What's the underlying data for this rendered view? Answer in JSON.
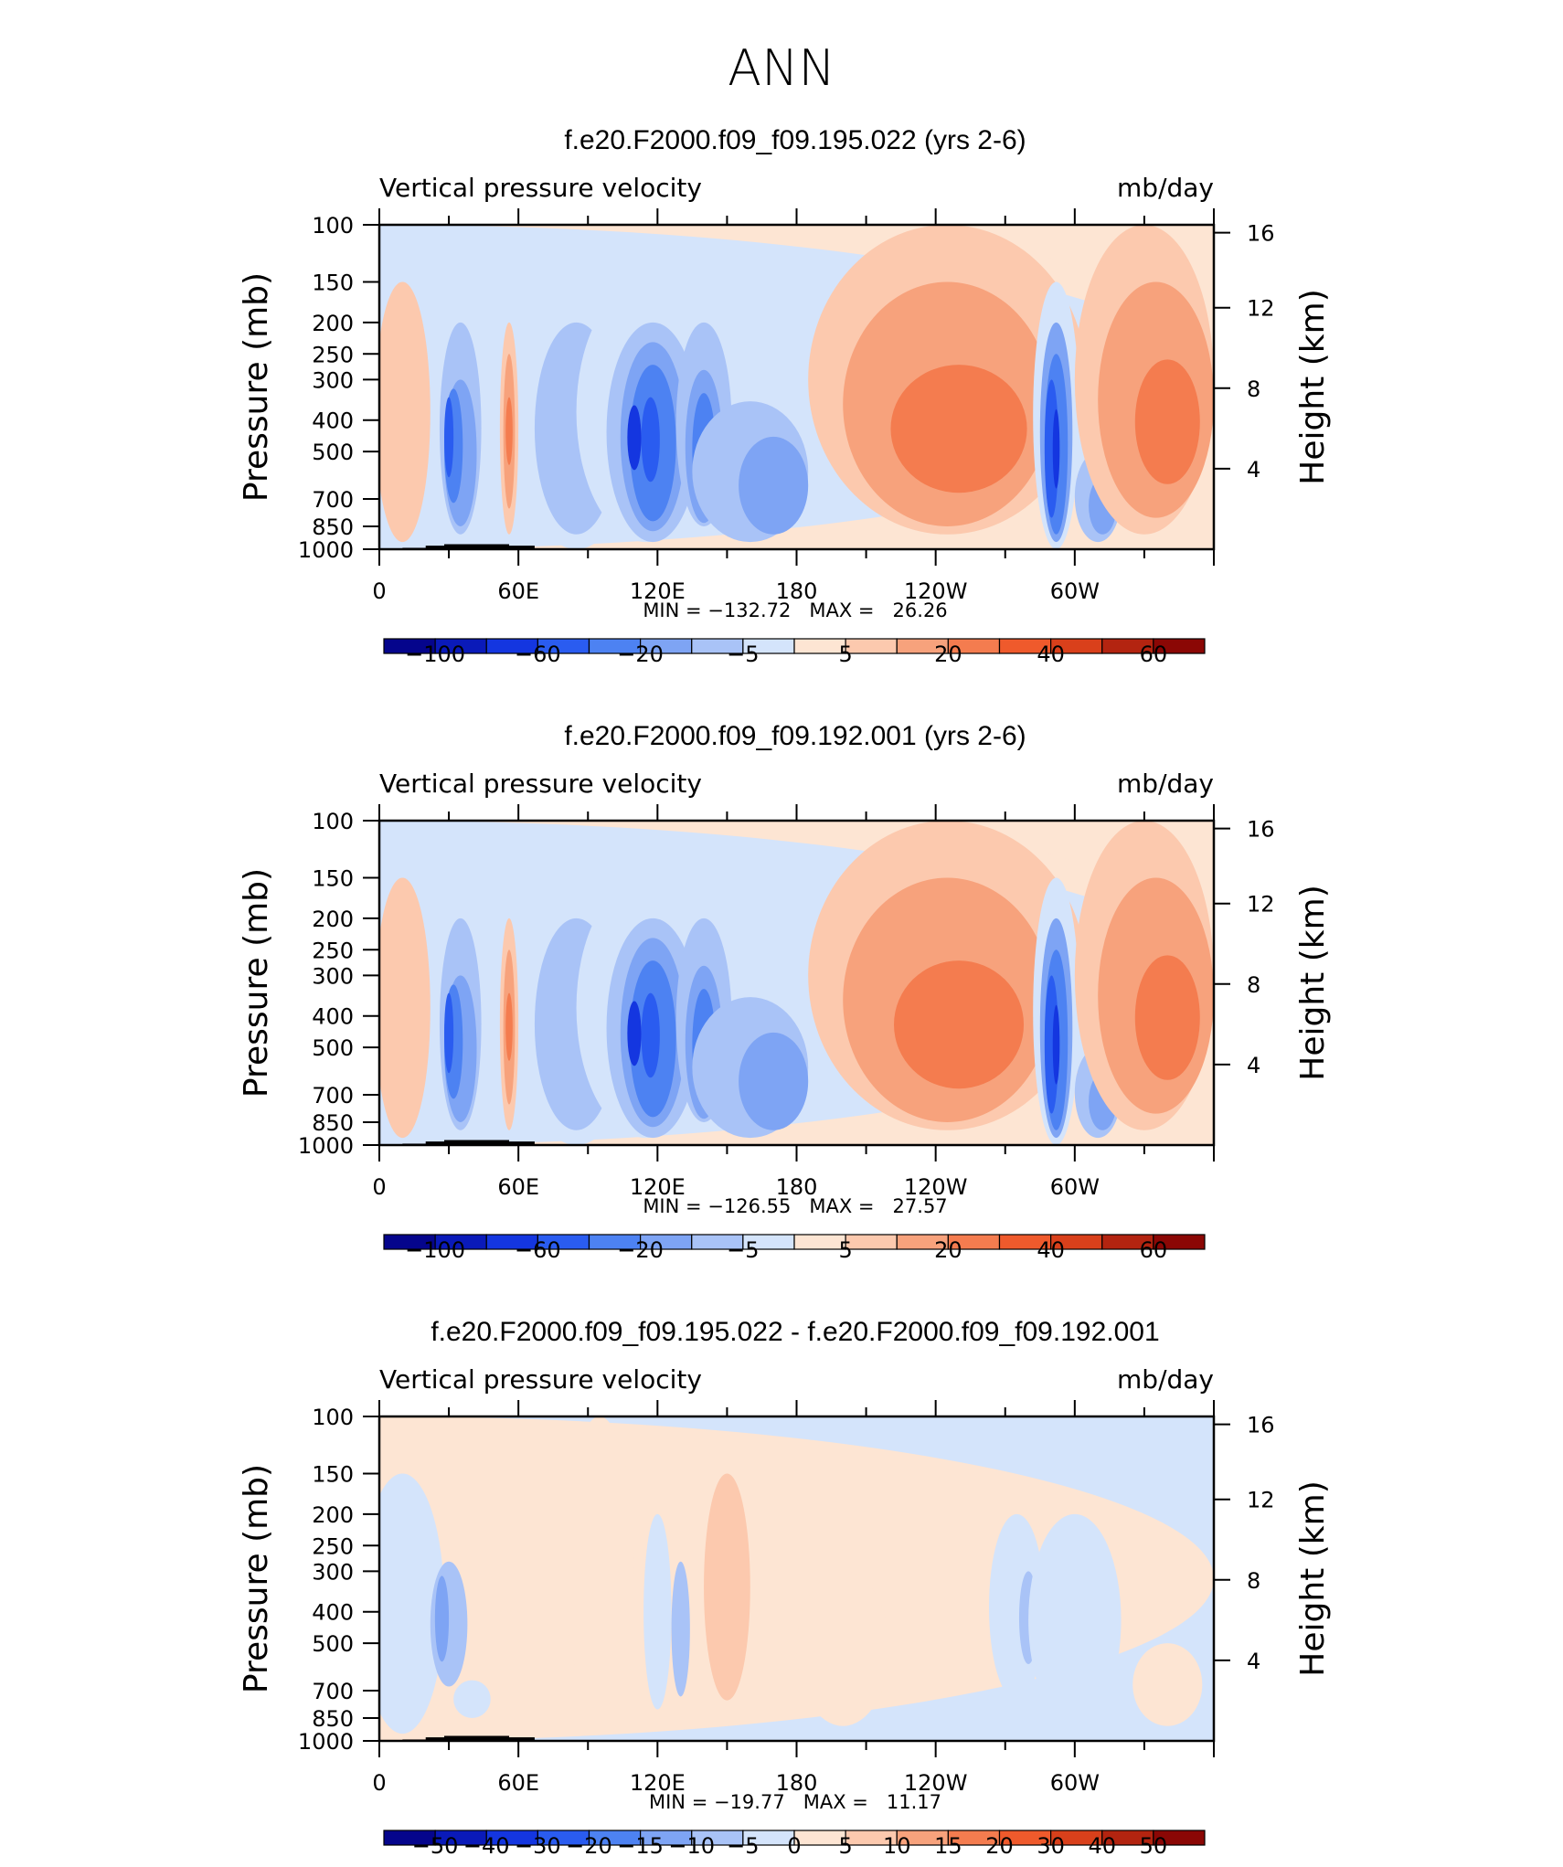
{
  "page_title": "ANN",
  "colors": {
    "scale_a": [
      "#05058c",
      "#0a1ab9",
      "#1436e0",
      "#2a5cf0",
      "#4d82f2",
      "#7ea4f4",
      "#a9c3f7",
      "#d4e4fb",
      "#fde5d3",
      "#fcc9ae",
      "#f7a27c",
      "#f47c4f",
      "#ef5a2c",
      "#d9401b",
      "#b32410",
      "#8b0705"
    ],
    "scale_b": [
      "#05058c",
      "#0a1ab9",
      "#1436e0",
      "#2a5cf0",
      "#4d82f2",
      "#7ea4f4",
      "#a9c3f7",
      "#d4e4fb",
      "#fde5d3",
      "#fcc9ae",
      "#f7a27c",
      "#f47c4f",
      "#ef5a2c",
      "#d9401b",
      "#b32410",
      "#8b0705"
    ],
    "orography": "#000000"
  },
  "chart_data": [
    {
      "type": "heatmap",
      "title": "f.e20.F2000.f09_f09.195.022 (yrs 2-6)",
      "left_label": "Vertical pressure velocity",
      "right_label": "mb/day",
      "ylabel": "Pressure (mb)",
      "ylabel_right": "Height (km)",
      "x_ticks": [
        "0",
        "60E",
        "120E",
        "180",
        "120W",
        "60W"
      ],
      "y_ticks": [
        "100",
        "150",
        "200",
        "250",
        "300",
        "400",
        "500",
        "700",
        "850",
        "1000"
      ],
      "y_ticks_right": [
        "16",
        "12",
        "8",
        "4"
      ],
      "stats": "MIN = −132.72   MAX =   26.26",
      "min": -132.72,
      "max": 26.26,
      "colorbar_labels": [
        "−100",
        "−60",
        "−20",
        "−5",
        "5",
        "20",
        "40",
        "60"
      ],
      "colorbar_levels": [
        -120,
        -100,
        -80,
        -60,
        -40,
        -20,
        -10,
        -5,
        0,
        5,
        10,
        20,
        30,
        40,
        50,
        60
      ]
    },
    {
      "type": "heatmap",
      "title": "f.e20.F2000.f09_f09.192.001 (yrs 2-6)",
      "left_label": "Vertical pressure velocity",
      "right_label": "mb/day",
      "ylabel": "Pressure (mb)",
      "ylabel_right": "Height (km)",
      "x_ticks": [
        "0",
        "60E",
        "120E",
        "180",
        "120W",
        "60W"
      ],
      "y_ticks": [
        "100",
        "150",
        "200",
        "250",
        "300",
        "400",
        "500",
        "700",
        "850",
        "1000"
      ],
      "y_ticks_right": [
        "16",
        "12",
        "8",
        "4"
      ],
      "stats": "MIN = −126.55   MAX =   27.57",
      "min": -126.55,
      "max": 27.57,
      "colorbar_labels": [
        "−100",
        "−60",
        "−20",
        "−5",
        "5",
        "20",
        "40",
        "60"
      ],
      "colorbar_levels": [
        -120,
        -100,
        -80,
        -60,
        -40,
        -20,
        -10,
        -5,
        0,
        5,
        10,
        20,
        30,
        40,
        50,
        60
      ]
    },
    {
      "type": "heatmap",
      "title": "f.e20.F2000.f09_f09.195.022 - f.e20.F2000.f09_f09.192.001",
      "left_label": "Vertical pressure velocity",
      "right_label": "mb/day",
      "ylabel": "Pressure (mb)",
      "ylabel_right": "Height (km)",
      "x_ticks": [
        "0",
        "60E",
        "120E",
        "180",
        "120W",
        "60W"
      ],
      "y_ticks": [
        "100",
        "150",
        "200",
        "250",
        "300",
        "400",
        "500",
        "700",
        "850",
        "1000"
      ],
      "y_ticks_right": [
        "16",
        "12",
        "8",
        "4"
      ],
      "stats": "MIN = −19.77   MAX =   11.17",
      "min": -19.77,
      "max": 11.17,
      "colorbar_labels": [
        "−50",
        "−40",
        "−30",
        "−20",
        "−15",
        "−10",
        "−5",
        "0",
        "5",
        "10",
        "15",
        "20",
        "30",
        "40",
        "50"
      ],
      "colorbar_levels": [
        -60,
        -50,
        -40,
        -30,
        -20,
        -15,
        -10,
        -5,
        0,
        5,
        10,
        15,
        20,
        30,
        40,
        50
      ]
    }
  ]
}
